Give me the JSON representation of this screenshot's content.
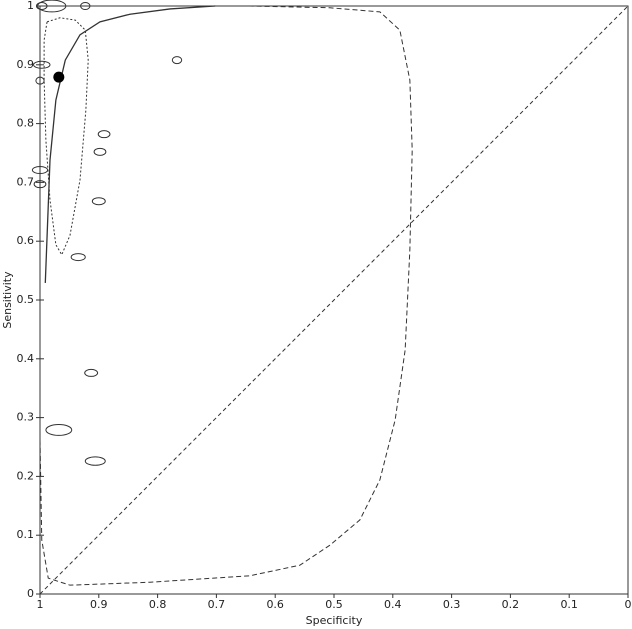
{
  "chart_data": {
    "type": "scatter",
    "x_label": "Specificity",
    "y_label": "Sensitivity",
    "xlim": [
      1,
      0
    ],
    "ylim": [
      0,
      1
    ],
    "xticks": [
      1,
      0.9,
      0.8,
      0.7,
      0.6,
      0.5,
      0.4,
      0.3,
      0.2,
      0.1,
      0
    ],
    "yticks": [
      0,
      0.1,
      0.2,
      0.3,
      0.4,
      0.5,
      0.6,
      0.7,
      0.8,
      0.9,
      1
    ],
    "points": {
      "x": [
        0.98,
        0.997,
        0.923,
        0.767,
        0.997,
        1.0,
        0.891,
        0.898,
        1.0,
        1.0,
        0.9,
        0.935,
        0.913,
        0.968,
        0.906
      ],
      "y": [
        1.0,
        1.0,
        1.0,
        0.908,
        0.9,
        0.873,
        0.782,
        0.752,
        0.721,
        0.697,
        0.668,
        0.573,
        0.376,
        0.279,
        0.226
      ],
      "sizes": [
        0.024,
        0.009,
        0.008,
        0.008,
        0.014,
        0.007,
        0.01,
        0.01,
        0.013,
        0.01,
        0.011,
        0.012,
        0.011,
        0.022,
        0.017
      ]
    },
    "summary_point": {
      "x": 0.968,
      "y": 0.879
    },
    "sroc_curve": {
      "x": [
        0.991,
        0.983,
        0.973,
        0.957,
        0.932,
        0.898,
        0.847,
        0.779,
        0.702
      ],
      "y": [
        0.529,
        0.738,
        0.84,
        0.908,
        0.951,
        0.973,
        0.986,
        0.995,
        1.0
      ]
    },
    "confidence_region": {
      "x": [
        0.988,
        0.966,
        0.94,
        0.923,
        0.918,
        0.922,
        0.932,
        0.949,
        0.963,
        0.973,
        0.983,
        0.99,
        0.993,
        0.993,
        0.988
      ],
      "y": [
        0.973,
        0.98,
        0.976,
        0.959,
        0.908,
        0.823,
        0.704,
        0.61,
        0.577,
        0.594,
        0.67,
        0.772,
        0.874,
        0.942,
        0.973
      ]
    },
    "prediction_region": {
      "x": [
        1.0,
        0.997,
        0.986,
        0.949,
        0.813,
        0.643,
        0.558,
        0.507,
        0.456,
        0.422,
        0.396,
        0.379,
        0.371,
        0.367,
        0.371,
        0.388,
        0.422,
        0.507,
        0.643
      ],
      "y": [
        0.262,
        0.092,
        0.027,
        0.015,
        0.02,
        0.031,
        0.049,
        0.083,
        0.126,
        0.194,
        0.296,
        0.415,
        0.585,
        0.755,
        0.874,
        0.959,
        0.99,
        0.997,
        1.0
      ]
    }
  }
}
